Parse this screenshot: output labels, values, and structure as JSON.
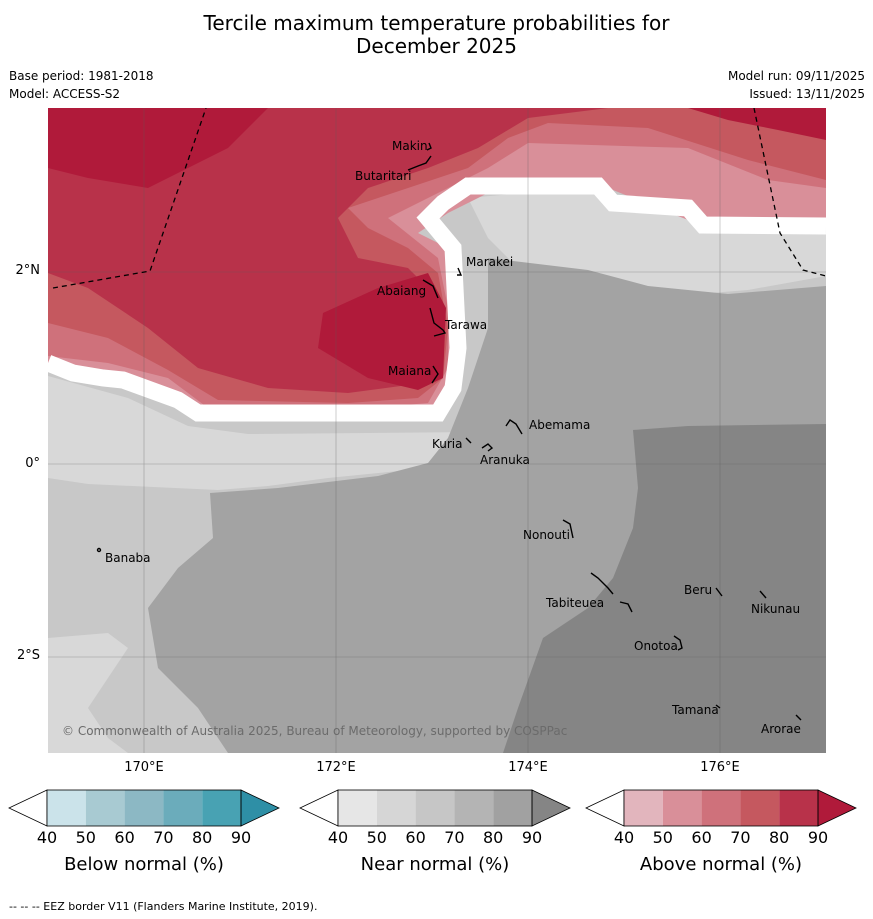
{
  "title": {
    "line1": "Tercile maximum temperature probabilities for",
    "line2": "December 2025"
  },
  "meta": {
    "base_period": "Base period: 1981-2018",
    "model": "Model: ACCESS-S2",
    "model_run": "Model run: 09/11/2025",
    "issued": "Issued: 13/11/2025"
  },
  "map": {
    "lat_labels": [
      "2°N",
      "0°",
      "2°S"
    ],
    "lon_labels": [
      "170°E",
      "172°E",
      "174°E",
      "176°E"
    ],
    "copyright": "© Commonwealth of Australia 2025, Bureau of Meteorology, supported by COSPPac",
    "places": [
      "Makin",
      "Butaritari",
      "Marakei",
      "Abaiang",
      "Tarawa",
      "Maiana",
      "Abemama",
      "Kuria",
      "Aranuka",
      "Banaba",
      "Nonouti",
      "Beru",
      "Nikunau",
      "Tabiteuea",
      "Onotoa",
      "Tamana",
      "Arorae"
    ]
  },
  "colorbars": [
    {
      "title": "Below normal (%)",
      "ticks": [
        "40",
        "50",
        "60",
        "70",
        "80",
        "90"
      ],
      "colors": [
        "#ffffff",
        "#cbe3ea",
        "#a8cad2",
        "#8cb8c4",
        "#6bacbb",
        "#48a2b3",
        "#2e8fa6"
      ]
    },
    {
      "title": "Near normal (%)",
      "ticks": [
        "40",
        "50",
        "60",
        "70",
        "80",
        "90"
      ],
      "colors": [
        "#ffffff",
        "#e6e6e6",
        "#d6d6d6",
        "#c6c6c6",
        "#b4b4b4",
        "#a1a1a1",
        "#858585"
      ]
    },
    {
      "title": "Above normal (%)",
      "ticks": [
        "40",
        "50",
        "60",
        "70",
        "80",
        "90"
      ],
      "colors": [
        "#ffffff",
        "#e2b5bd",
        "#d98f99",
        "#cf717b",
        "#c5585f",
        "#b8324a",
        "#b01a3a"
      ]
    }
  ],
  "footnote": "--  --  -- EEZ border V11 (Flanders Marine Institute, 2019)."
}
